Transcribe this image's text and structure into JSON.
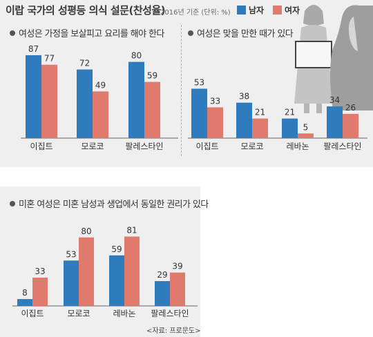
{
  "header": {
    "title": "이랍 국가의 성평등 의식 설문(찬성율)",
    "meta": "2016년 기준 (단위: %)"
  },
  "legend": {
    "male": "남자",
    "female": "여자"
  },
  "colors": {
    "male": "#2e7bbd",
    "female": "#e07a6d",
    "panel": "#efefef"
  },
  "source": "<자료: 프로문도>",
  "chart_data": [
    {
      "type": "bar",
      "title": "여성은 가정을 보살피고 요리를 해야 한다",
      "categories": [
        "이집트",
        "모로코",
        "팔레스타인"
      ],
      "series": [
        {
          "name": "남자",
          "values": [
            87,
            72,
            80
          ]
        },
        {
          "name": "여자",
          "values": [
            77,
            49,
            59
          ]
        }
      ]
    },
    {
      "type": "bar",
      "title": "여성은 맞을 만한 때가 있다",
      "categories": [
        "이집트",
        "모로코",
        "레바논",
        "팔레스타인"
      ],
      "series": [
        {
          "name": "남자",
          "values": [
            53,
            38,
            21,
            34
          ]
        },
        {
          "name": "여자",
          "values": [
            33,
            21,
            5,
            26
          ]
        }
      ]
    },
    {
      "type": "bar",
      "title": "미혼 여성은 미혼 남성과 생업에서 동일한 권리가 있다",
      "categories": [
        "이집트",
        "모로코",
        "레바논",
        "팔레스타인"
      ],
      "series": [
        {
          "name": "남자",
          "values": [
            8,
            53,
            59,
            29
          ]
        },
        {
          "name": "여자",
          "values": [
            33,
            80,
            81,
            39
          ]
        }
      ]
    }
  ]
}
